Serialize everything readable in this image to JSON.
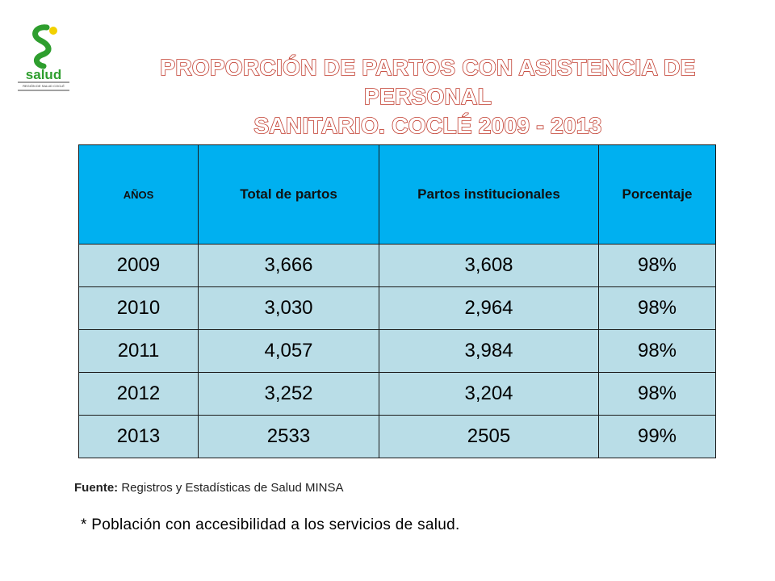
{
  "logo": {
    "text": "salud",
    "subtext": "REGIÓN DE SALUD COCLÉ"
  },
  "title": {
    "line1": "PROPORCIÓN DE PARTOS CON ASISTENCIA DE PERSONAL",
    "line2": "SANITARIO.  COCLÉ 2009 - 2013"
  },
  "table": {
    "headers": [
      "AÑOS",
      "Total de partos",
      "Partos institucionales",
      "Porcentaje"
    ],
    "rows": [
      [
        "2009",
        "3,666",
        "3,608",
        "98%"
      ],
      [
        "2010",
        "3,030",
        "2,964",
        "98%"
      ],
      [
        "2011",
        "4,057",
        "3,984",
        "98%"
      ],
      [
        "2012",
        "3,252",
        "3,204",
        "98%"
      ],
      [
        "2013",
        "2533",
        "2505",
        "99%"
      ]
    ]
  },
  "source": {
    "label": "Fuente:",
    "text": "Registros y Estadísticas de Salud MINSA"
  },
  "note": "* Población con accesibilidad a los servicios de salud."
}
